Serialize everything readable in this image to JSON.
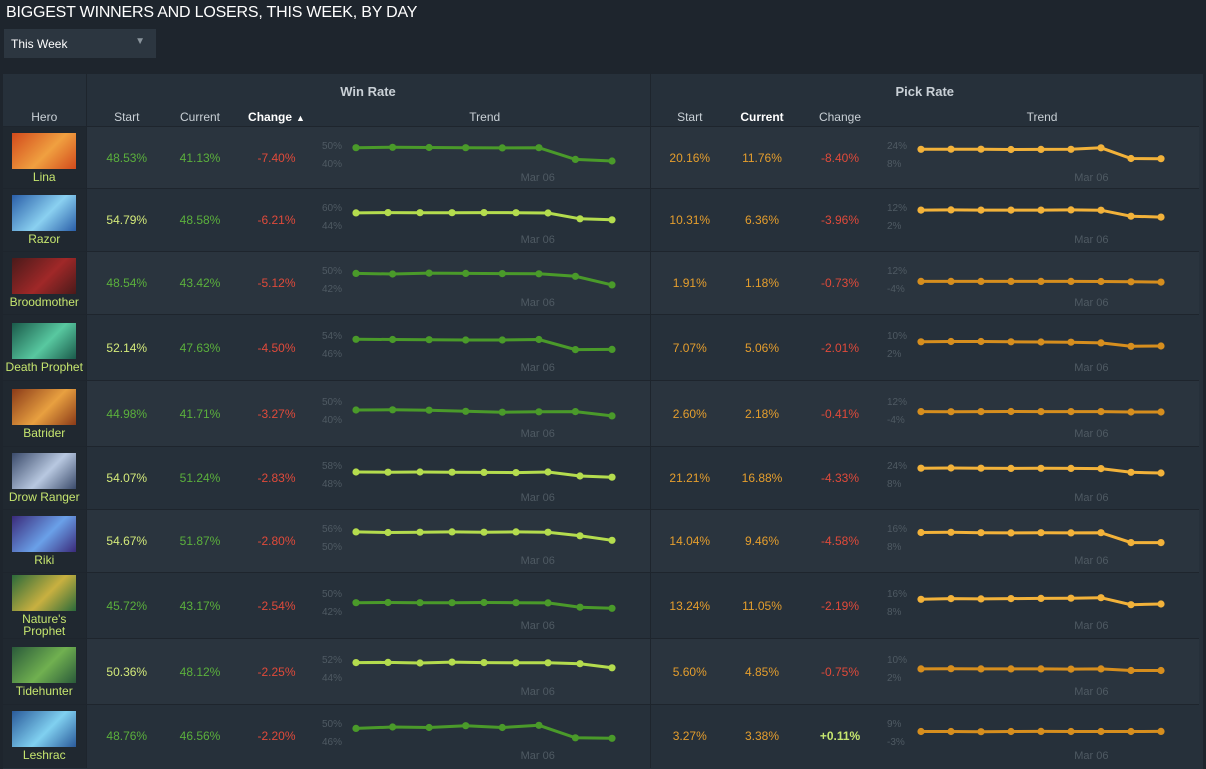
{
  "page": {
    "title": "BIGGEST WINNERS AND LOSERS, THIS WEEK, BY DAY",
    "period_dropdown": {
      "selected": "This Week"
    }
  },
  "table": {
    "group_headers": {
      "win_rate": "Win Rate",
      "pick_rate": "Pick Rate"
    },
    "columns": {
      "hero": "Hero",
      "wr_start": "Start",
      "wr_current": "Current",
      "wr_change": "Change",
      "wr_trend": "Trend",
      "pr_start": "Start",
      "pr_current": "Current",
      "pr_change": "Change",
      "pr_trend": "Trend"
    },
    "sort": {
      "column": "wr_change",
      "direction": "ascending"
    },
    "trend_axis_label": "Mar 06",
    "colors": {
      "win_trend": "#4a9a2a",
      "win_trend_bright": "#b4dc4e",
      "pick_trend": "#d68e1e",
      "pick_trend_bright": "#f2b23a",
      "positive": "#c6e66f",
      "negative": "#e04a3a"
    },
    "rows": [
      {
        "hero": "Lina",
        "portrait_colors": [
          "#d24a1c",
          "#f0a040"
        ],
        "wr_start": "48.53%",
        "wr_current": "41.13%",
        "wr_change": "-7.40%",
        "wr_axis": [
          "50%",
          "40%"
        ],
        "wr_range": [
          40,
          50
        ],
        "wr_trend": [
          48.5,
          48.7,
          48.6,
          48.5,
          48.4,
          48.5,
          42.0,
          41.1
        ],
        "pr_start": "20.16%",
        "pr_current": "11.76%",
        "pr_change": "-8.40%",
        "pr_axis": [
          "24%",
          "8%"
        ],
        "pr_range": [
          8,
          24
        ],
        "pr_trend": [
          20.2,
          20.3,
          20.3,
          20.0,
          20.1,
          20.2,
          21.5,
          12.0,
          11.8
        ],
        "start_bold": false,
        "wr_bright": false,
        "pr_bright": true
      },
      {
        "hero": "Razor",
        "portrait_colors": [
          "#2a5ea8",
          "#8ad0f0"
        ],
        "wr_start": "54.79%",
        "wr_current": "48.58%",
        "wr_change": "-6.21%",
        "wr_axis": [
          "60%",
          "44%"
        ],
        "wr_range": [
          44,
          60
        ],
        "wr_trend": [
          54.8,
          55.0,
          54.9,
          54.9,
          55.0,
          54.9,
          54.7,
          49.5,
          48.6
        ],
        "pr_start": "10.31%",
        "pr_current": "6.36%",
        "pr_change": "-3.96%",
        "pr_axis": [
          "12%",
          "2%"
        ],
        "pr_range": [
          2,
          12
        ],
        "pr_trend": [
          10.3,
          10.4,
          10.3,
          10.3,
          10.3,
          10.4,
          10.2,
          6.9,
          6.4
        ],
        "start_bold": true,
        "wr_bright": true,
        "pr_bright": true
      },
      {
        "hero": "Broodmother",
        "portrait_colors": [
          "#4a1a1a",
          "#a02828"
        ],
        "wr_start": "48.54%",
        "wr_current": "43.42%",
        "wr_change": "-5.12%",
        "wr_axis": [
          "50%",
          "42%"
        ],
        "wr_range": [
          42,
          50
        ],
        "wr_trend": [
          48.5,
          48.2,
          48.6,
          48.5,
          48.4,
          48.3,
          47.2,
          43.4
        ],
        "pr_start": "1.91%",
        "pr_current": "1.18%",
        "pr_change": "-0.73%",
        "pr_axis": [
          "12%",
          "-4%"
        ],
        "pr_range": [
          -4,
          12
        ],
        "pr_trend": [
          1.9,
          1.9,
          1.9,
          1.9,
          1.9,
          1.9,
          1.8,
          1.5,
          1.2
        ],
        "start_bold": false,
        "wr_bright": false,
        "pr_bright": false
      },
      {
        "hero": "Death Prophet",
        "portrait_colors": [
          "#1a5a4a",
          "#58c8a0"
        ],
        "wr_start": "52.14%",
        "wr_current": "47.63%",
        "wr_change": "-4.50%",
        "wr_axis": [
          "54%",
          "46%"
        ],
        "wr_range": [
          46,
          54
        ],
        "wr_trend": [
          52.1,
          52.0,
          51.9,
          51.8,
          51.8,
          52.0,
          47.5,
          47.6
        ],
        "pr_start": "7.07%",
        "pr_current": "5.06%",
        "pr_change": "-2.01%",
        "pr_axis": [
          "10%",
          "2%"
        ],
        "pr_range": [
          2,
          10
        ],
        "pr_trend": [
          7.0,
          7.1,
          7.1,
          7.0,
          6.9,
          6.8,
          6.5,
          5.0,
          5.1
        ],
        "start_bold": true,
        "wr_bright": false,
        "pr_bright": false
      },
      {
        "hero": "Batrider",
        "portrait_colors": [
          "#8a3a18",
          "#e8a040"
        ],
        "wr_start": "44.98%",
        "wr_current": "41.71%",
        "wr_change": "-3.27%",
        "wr_axis": [
          "50%",
          "40%"
        ],
        "wr_range": [
          40,
          50
        ],
        "wr_trend": [
          45.0,
          45.1,
          44.9,
          44.3,
          43.8,
          44.0,
          44.1,
          41.7
        ],
        "pr_start": "2.60%",
        "pr_current": "2.18%",
        "pr_change": "-0.41%",
        "pr_axis": [
          "12%",
          "-4%"
        ],
        "pr_range": [
          -4,
          12
        ],
        "pr_trend": [
          2.6,
          2.5,
          2.6,
          2.7,
          2.6,
          2.6,
          2.6,
          2.2,
          2.2
        ],
        "start_bold": false,
        "wr_bright": false,
        "pr_bright": false
      },
      {
        "hero": "Drow Ranger",
        "portrait_colors": [
          "#3a4a6a",
          "#b8c8e0"
        ],
        "wr_start": "54.07%",
        "wr_current": "51.24%",
        "wr_change": "-2.83%",
        "wr_axis": [
          "58%",
          "48%"
        ],
        "wr_range": [
          48,
          58
        ],
        "wr_trend": [
          54.1,
          54.0,
          54.1,
          54.0,
          53.9,
          53.8,
          54.1,
          51.9,
          51.2
        ],
        "pr_start": "21.21%",
        "pr_current": "16.88%",
        "pr_change": "-4.33%",
        "pr_axis": [
          "24%",
          "8%"
        ],
        "pr_range": [
          8,
          24
        ],
        "pr_trend": [
          21.2,
          21.3,
          21.2,
          21.0,
          21.1,
          21.0,
          20.8,
          17.5,
          16.9
        ],
        "start_bold": true,
        "wr_bright": true,
        "pr_bright": true
      },
      {
        "hero": "Riki",
        "portrait_colors": [
          "#3a2a7a",
          "#6aa0e8"
        ],
        "wr_start": "54.67%",
        "wr_current": "51.87%",
        "wr_change": "-2.80%",
        "wr_axis": [
          "56%",
          "50%"
        ],
        "wr_range": [
          50,
          56
        ],
        "wr_trend": [
          54.7,
          54.5,
          54.6,
          54.7,
          54.6,
          54.7,
          54.6,
          53.4,
          51.9
        ],
        "pr_start": "14.04%",
        "pr_current": "9.46%",
        "pr_change": "-4.58%",
        "pr_axis": [
          "16%",
          "8%"
        ],
        "pr_range": [
          8,
          16
        ],
        "pr_trend": [
          14.0,
          14.1,
          13.9,
          13.8,
          13.9,
          13.8,
          13.9,
          9.5,
          9.5
        ],
        "start_bold": true,
        "wr_bright": true,
        "pr_bright": true
      },
      {
        "hero": "Nature's Prophet",
        "portrait_colors": [
          "#2a6a3a",
          "#c8b040"
        ],
        "wr_start": "45.72%",
        "wr_current": "43.17%",
        "wr_change": "-2.54%",
        "wr_axis": [
          "50%",
          "42%"
        ],
        "wr_range": [
          42,
          50
        ],
        "wr_trend": [
          45.7,
          45.8,
          45.7,
          45.7,
          45.8,
          45.7,
          45.6,
          43.7,
          43.2
        ],
        "pr_start": "13.24%",
        "pr_current": "11.05%",
        "pr_change": "-2.19%",
        "pr_axis": [
          "16%",
          "8%"
        ],
        "pr_range": [
          8,
          16
        ],
        "pr_trend": [
          13.2,
          13.5,
          13.4,
          13.5,
          13.6,
          13.7,
          13.9,
          10.8,
          11.1
        ],
        "start_bold": false,
        "wr_bright": false,
        "pr_bright": true
      },
      {
        "hero": "Tidehunter",
        "portrait_colors": [
          "#2a5a3a",
          "#70b050"
        ],
        "wr_start": "50.36%",
        "wr_current": "48.12%",
        "wr_change": "-2.25%",
        "wr_axis": [
          "52%",
          "44%"
        ],
        "wr_range": [
          44,
          52
        ],
        "wr_trend": [
          50.4,
          50.5,
          50.2,
          50.6,
          50.4,
          50.3,
          50.3,
          49.9,
          48.1
        ],
        "pr_start": "5.60%",
        "pr_current": "4.85%",
        "pr_change": "-0.75%",
        "pr_axis": [
          "10%",
          "2%"
        ],
        "pr_range": [
          2,
          10
        ],
        "pr_trend": [
          5.6,
          5.7,
          5.6,
          5.6,
          5.6,
          5.5,
          5.6,
          4.9,
          4.9
        ],
        "start_bold": true,
        "wr_bright": true,
        "pr_bright": false
      },
      {
        "hero": "Leshrac",
        "portrait_colors": [
          "#2a5a9a",
          "#80d0f0"
        ],
        "wr_start": "48.76%",
        "wr_current": "46.56%",
        "wr_change": "-2.20%",
        "wr_axis": [
          "50%",
          "46%"
        ],
        "wr_range": [
          46,
          50
        ],
        "wr_trend": [
          48.8,
          49.1,
          49.0,
          49.4,
          49.0,
          49.5,
          46.7,
          46.6
        ],
        "pr_start": "3.27%",
        "pr_current": "3.38%",
        "pr_change": "+0.11%",
        "pr_axis": [
          "9%",
          "-3%"
        ],
        "pr_range": [
          -3,
          9
        ],
        "pr_trend": [
          3.3,
          3.3,
          3.2,
          3.3,
          3.4,
          3.3,
          3.3,
          3.3,
          3.4
        ],
        "start_bold": false,
        "wr_bright": false,
        "pr_bright": false
      }
    ]
  }
}
